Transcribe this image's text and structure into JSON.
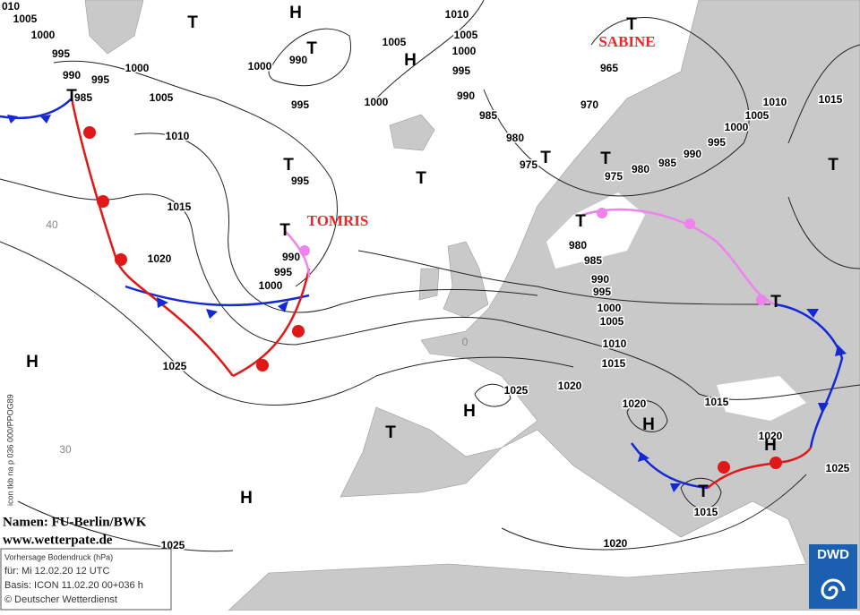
{
  "storms": [
    "SABINE",
    "TOMRIS"
  ],
  "pressure_centers": [
    "T",
    "H",
    "T",
    "H",
    "T",
    "T",
    "T",
    "T",
    "T",
    "T",
    "T",
    "T",
    "T",
    "T",
    "H",
    "H",
    "H",
    "H",
    "T",
    "H",
    "T"
  ],
  "isobar_labels": [
    "010",
    "1005",
    "1000",
    "995",
    "990",
    "985",
    "995",
    "1000",
    "1005",
    "1010",
    "1015",
    "1020",
    "1025",
    "1025",
    "1000",
    "990",
    "995",
    "1000",
    "1005",
    "1010",
    "1005",
    "1000",
    "995",
    "990",
    "985",
    "980",
    "975",
    "965",
    "970",
    "975",
    "980",
    "985",
    "990",
    "995",
    "1000",
    "1005",
    "1010",
    "1015",
    "995",
    "990",
    "995",
    "1000",
    "980",
    "985",
    "990",
    "995",
    "1000",
    "1005",
    "1010",
    "1015",
    "1015",
    "1020",
    "1025",
    "1020",
    "1020",
    "1025",
    "1015",
    "1020"
  ],
  "grid_labels": [
    "40",
    "30",
    "0"
  ],
  "credits": {
    "names": "Namen: FU-Berlin/BWK",
    "url": "www.wetterpate.de"
  },
  "info_box": {
    "product": "Vorhersage Bodendruck (hPa)",
    "valid": "für:  Mi 12.02.20  12 UTC",
    "basis": "Basis:  ICON  11.02.20 00+036 h",
    "copyright": "© Deutscher Wetterdienst"
  },
  "side_label": "icon tkb na p 036 000/PPOG89",
  "logo": "DWD"
}
